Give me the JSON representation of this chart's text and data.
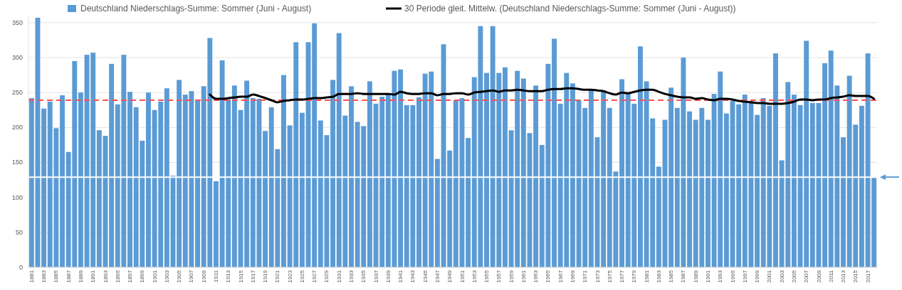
{
  "chart_data": {
    "type": "bar",
    "categories": [
      "1881",
      null,
      "1883",
      null,
      "1885",
      null,
      "1887",
      null,
      "1889",
      null,
      "1891",
      null,
      "1893",
      null,
      "1895",
      null,
      "1897",
      null,
      "1899",
      null,
      "1901",
      null,
      "1903",
      null,
      "1905",
      null,
      "1907",
      null,
      "1909",
      null,
      "1911",
      null,
      "1913",
      null,
      "1915",
      null,
      "1917",
      null,
      "1919",
      null,
      "1921",
      null,
      "1923",
      null,
      "1925",
      null,
      "1927",
      null,
      "1929",
      null,
      "1931",
      null,
      "1933",
      null,
      "1935",
      null,
      "1937",
      null,
      "1939",
      null,
      "1941",
      null,
      "1943",
      null,
      "1945",
      null,
      "1947",
      null,
      "1949",
      null,
      "1951",
      null,
      "1953",
      null,
      "1955",
      null,
      "1957",
      null,
      "1959",
      null,
      "1961",
      null,
      "1963",
      null,
      "1965",
      null,
      "1967",
      null,
      "1969",
      null,
      "1971",
      null,
      "1973",
      null,
      "1975",
      null,
      "1977",
      null,
      "1979",
      null,
      "1981",
      null,
      "1983",
      null,
      "1985",
      null,
      "1987",
      null,
      "1989",
      null,
      "1991",
      null,
      "1993",
      null,
      "1995",
      null,
      "1997",
      null,
      "1999",
      null,
      "2001",
      null,
      "2003",
      null,
      "2005",
      null,
      "2007",
      null,
      "2009",
      null,
      "2011",
      null,
      "2013",
      null,
      "2015",
      null,
      "2017",
      null
    ],
    "series": [
      {
        "name": "Deutschland Niederschlags-Summe: Sommer (Juni - August)",
        "color": "#5b9bd5",
        "values": [
          242,
          357,
          227,
          237,
          199,
          246,
          165,
          295,
          250,
          304,
          307,
          196,
          188,
          291,
          233,
          304,
          251,
          229,
          181,
          250,
          225,
          237,
          256,
          131,
          268,
          247,
          252,
          240,
          259,
          328,
          123,
          296,
          240,
          260,
          225,
          267,
          242,
          241,
          195,
          229,
          169,
          275,
          203,
          322,
          221,
          322,
          349,
          210,
          189,
          268,
          335,
          217,
          259,
          208,
          202,
          266,
          234,
          244,
          249,
          281,
          283,
          232,
          232,
          243,
          277,
          280,
          155,
          319,
          167,
          239,
          242,
          185,
          272,
          345,
          278,
          345,
          278,
          286,
          196,
          281,
          270,
          192,
          260,
          175,
          291,
          327,
          234,
          278,
          263,
          239,
          228,
          255,
          186,
          252,
          228,
          137,
          269,
          248,
          234,
          316,
          266,
          213,
          144,
          211,
          257,
          228,
          300,
          223,
          211,
          228,
          211,
          248,
          280,
          220,
          238,
          233,
          247,
          238,
          218,
          242,
          231,
          306,
          153,
          265,
          247,
          232,
          324,
          235,
          235,
          292,
          310,
          260,
          186,
          274,
          204,
          231,
          306,
          128
        ]
      },
      {
        "name": "30 Periode gleit. Mittelw. (Deutschland Niederschlags-Summe: Sommer (Juni - August))",
        "type": "line",
        "color": "#000000",
        "values": [
          null,
          null,
          null,
          null,
          null,
          null,
          null,
          null,
          null,
          null,
          null,
          null,
          null,
          null,
          null,
          null,
          null,
          null,
          null,
          null,
          null,
          null,
          null,
          null,
          null,
          null,
          null,
          null,
          null,
          247,
          241,
          241,
          242,
          243,
          244,
          244,
          247,
          245,
          242,
          239,
          236,
          238,
          239,
          240,
          240,
          241,
          242,
          242,
          243,
          244,
          248,
          248,
          248,
          249,
          248,
          248,
          248,
          248,
          248,
          247,
          251,
          249,
          248,
          248,
          249,
          249,
          246,
          248,
          248,
          249,
          249,
          247,
          250,
          251,
          252,
          253,
          251,
          253,
          253,
          254,
          253,
          252,
          252,
          252,
          254,
          255,
          255,
          256,
          256,
          255,
          254,
          254,
          253,
          252,
          249,
          247,
          250,
          249,
          251,
          253,
          254,
          254,
          251,
          248,
          246,
          244,
          243,
          243,
          241,
          242,
          240,
          239,
          241,
          241,
          240,
          238,
          237,
          236,
          235,
          235,
          234,
          234,
          234,
          235,
          237,
          240,
          240,
          239,
          240,
          240,
          242,
          243,
          244,
          246,
          245,
          245,
          245,
          241
        ]
      }
    ],
    "ylim": [
      0,
      360
    ],
    "yticks": [
      0,
      50,
      100,
      150,
      200,
      250,
      300,
      350
    ],
    "grid": "y",
    "legend": "top",
    "ref_lines": [
      {
        "axis": "y",
        "value": 239,
        "color": "#ff5050",
        "line_style": "dashed"
      },
      {
        "axis": "y",
        "value": 129,
        "color": "#ffffff",
        "line_style": "solid"
      }
    ]
  }
}
